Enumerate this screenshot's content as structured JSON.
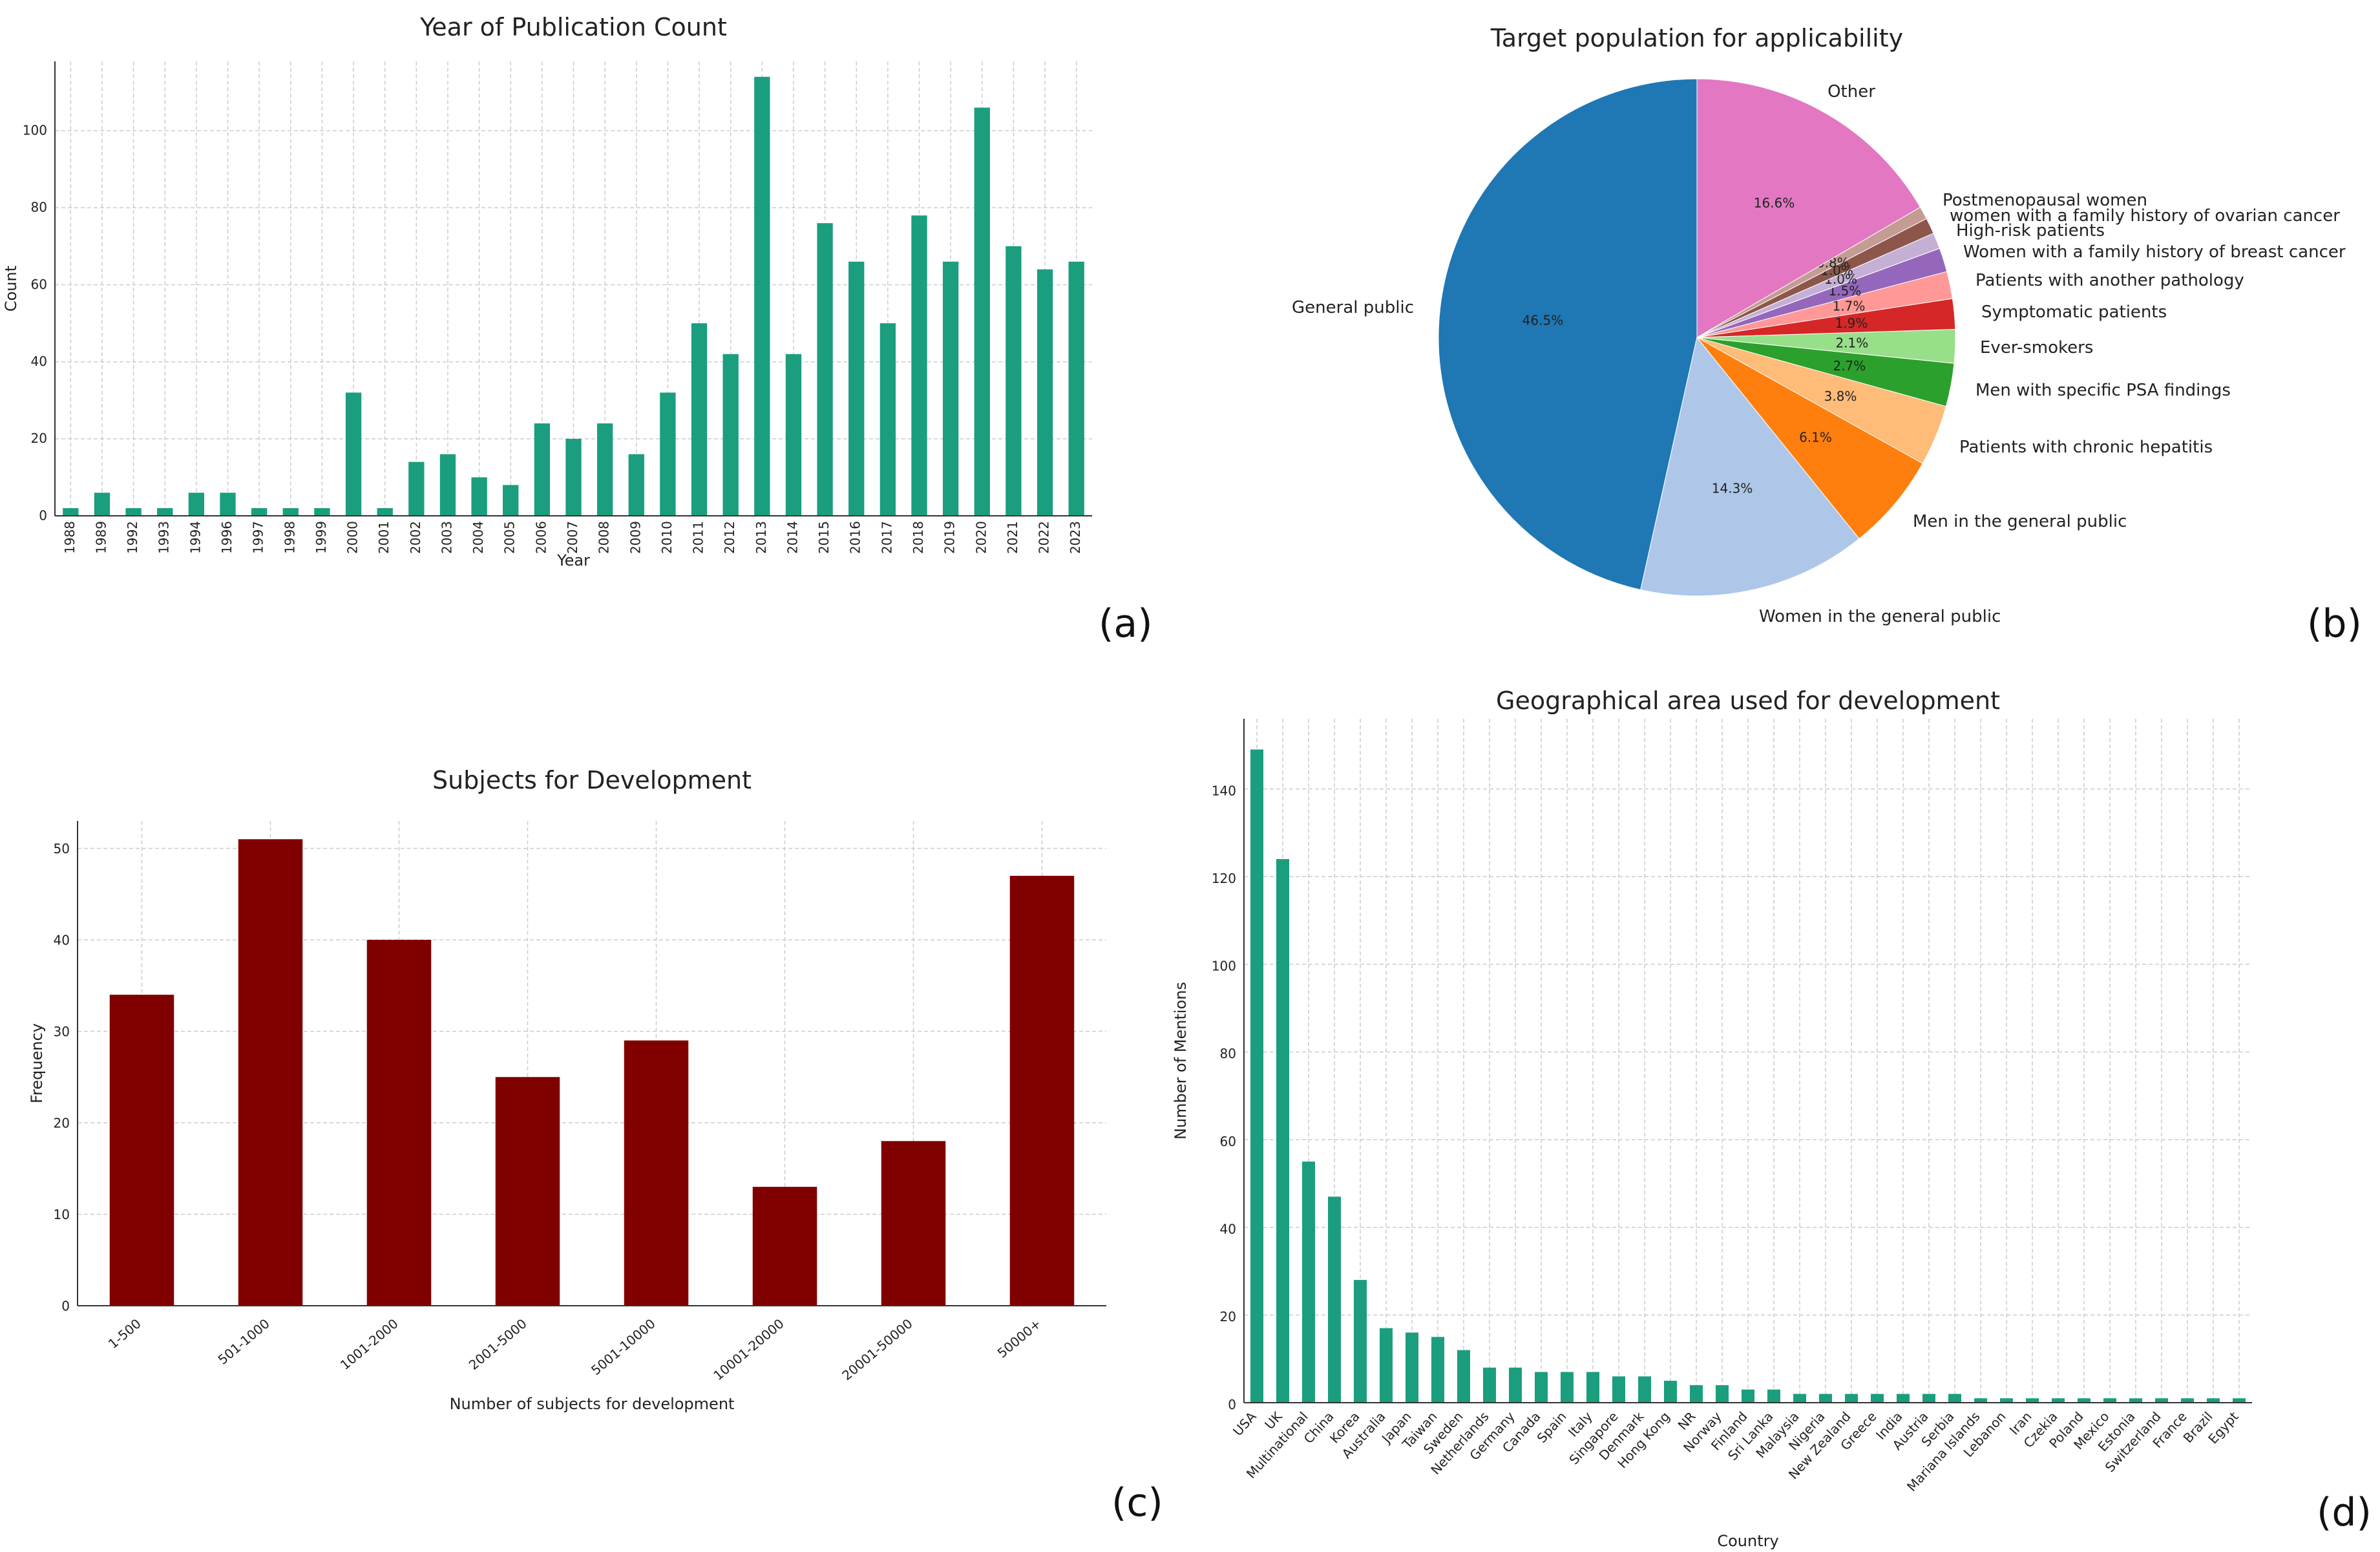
{
  "panel_letters": [
    "(a)",
    "(b)",
    "(c)",
    "(d)"
  ],
  "chart_data": [
    {
      "type": "bar",
      "title": "Year of Publication Count",
      "xlabel": "Year",
      "ylabel": "Count",
      "ylim": [
        0,
        118
      ],
      "yticks": [
        0,
        20,
        40,
        60,
        80,
        100
      ],
      "color": "#1a9e7e",
      "grid": true,
      "categories": [
        "1988",
        "1989",
        "1992",
        "1993",
        "1994",
        "1996",
        "1997",
        "1998",
        "1999",
        "2000",
        "2001",
        "2002",
        "2003",
        "2004",
        "2005",
        "2006",
        "2007",
        "2008",
        "2009",
        "2010",
        "2011",
        "2012",
        "2013",
        "2014",
        "2015",
        "2016",
        "2017",
        "2018",
        "2019",
        "2020",
        "2021",
        "2022",
        "2023"
      ],
      "values": [
        2,
        6,
        2,
        2,
        6,
        6,
        2,
        2,
        2,
        32,
        2,
        14,
        16,
        10,
        8,
        24,
        20,
        24,
        16,
        32,
        50,
        42,
        114,
        42,
        76,
        66,
        50,
        78,
        66,
        106,
        70,
        64,
        66
      ]
    },
    {
      "type": "pie",
      "title": "Target population for applicability",
      "slices": [
        {
          "label": "General public",
          "value": 46.5,
          "pct": "46.5%",
          "color": "#1f77b4"
        },
        {
          "label": "Women in the general public",
          "value": 14.3,
          "pct": "14.3%",
          "color": "#aec7e8"
        },
        {
          "label": "Men in the general public",
          "value": 6.1,
          "pct": "6.1%",
          "color": "#ff7f0e"
        },
        {
          "label": "Patients with chronic hepatitis",
          "value": 3.8,
          "pct": "3.8%",
          "color": "#ffbb78"
        },
        {
          "label": "Men with specific PSA findings",
          "value": 2.7,
          "pct": "2.7%",
          "color": "#2ca02c"
        },
        {
          "label": "Ever-smokers",
          "value": 2.1,
          "pct": "2.1%",
          "color": "#98df8a"
        },
        {
          "label": "Symptomatic patients",
          "value": 1.9,
          "pct": "1.9%",
          "color": "#d62728"
        },
        {
          "label": "Patients with another pathology",
          "value": 1.7,
          "pct": "1.7%",
          "color": "#ff9896"
        },
        {
          "label": "Women with a family history of breast cancer",
          "value": 1.5,
          "pct": "1.5%",
          "color": "#9467bd"
        },
        {
          "label": "High-risk patients",
          "value": 1.0,
          "pct": "1.0%",
          "color": "#c5b0d5"
        },
        {
          "label": "women with a family history of ovarian cancer",
          "value": 1.0,
          "pct": "1.0%",
          "color": "#8c564b"
        },
        {
          "label": "Postmenopausal women",
          "value": 0.8,
          "pct": "0.8%",
          "color": "#c49c94"
        },
        {
          "label": "Other",
          "value": 16.6,
          "pct": "16.6%",
          "color": "#e377c2"
        }
      ]
    },
    {
      "type": "bar",
      "title": "Subjects for Development",
      "xlabel": "Number of subjects for development",
      "ylabel": "Frequency",
      "ylim": [
        0,
        53
      ],
      "yticks": [
        0,
        10,
        20,
        30,
        40,
        50
      ],
      "color": "#800000",
      "grid": true,
      "categories": [
        "1-500",
        "501-1000",
        "1001-2000",
        "2001-5000",
        "5001-10000",
        "10001-20000",
        "20001-50000",
        "50000+"
      ],
      "values": [
        34,
        51,
        40,
        25,
        29,
        13,
        18,
        47
      ]
    },
    {
      "type": "bar",
      "title": "Geographical area used for development",
      "xlabel": "Country",
      "ylabel": "Number of Mentions",
      "ylim": [
        0,
        156
      ],
      "yticks": [
        0,
        20,
        40,
        60,
        80,
        100,
        120,
        140
      ],
      "color": "#1a9e7e",
      "grid": true,
      "categories": [
        "USA",
        "UK",
        "Multinational",
        "China",
        "Korea",
        "Australia",
        "Japan",
        "Taiwan",
        "Sweden",
        "Netherlands",
        "Germany",
        "Canada",
        "Spain",
        "Italy",
        "Singapore",
        "Denmark",
        "Hong Kong",
        "NR",
        "Norway",
        "Finland",
        "Sri Lanka",
        "Malaysia",
        "Nigeria",
        "New Zealand",
        "Greece",
        "India",
        "Austria",
        "Serbia",
        "Mariana Islands",
        "Lebanon",
        "Iran",
        "Czekia",
        "Poland",
        "Mexico",
        "Estonia",
        "Switzerland",
        "France",
        "Brazil",
        "Egypt"
      ],
      "values": [
        149,
        124,
        55,
        47,
        28,
        17,
        16,
        15,
        12,
        8,
        8,
        7,
        7,
        7,
        6,
        6,
        5,
        4,
        4,
        3,
        3,
        2,
        2,
        2,
        2,
        2,
        2,
        2,
        1,
        1,
        1,
        1,
        1,
        1,
        1,
        1,
        1,
        1,
        1
      ]
    }
  ]
}
